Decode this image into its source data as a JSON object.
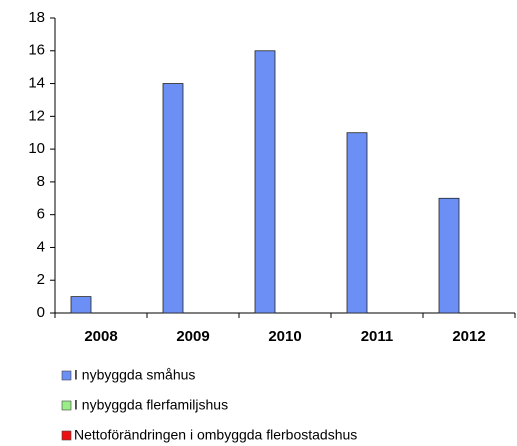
{
  "chart_data": {
    "type": "bar",
    "categories": [
      "2008",
      "2009",
      "2010",
      "2011",
      "2012"
    ],
    "series": [
      {
        "name": "I nybyggda småhus",
        "color": "#6b8ff5",
        "values": [
          1,
          14,
          16,
          11,
          7
        ]
      },
      {
        "name": "I nybyggda flerfamiljshus",
        "color": "#99ee88",
        "values": [
          0,
          0,
          0,
          0,
          0
        ]
      },
      {
        "name": "Nettoförändringen i ombyggda flerbostadshus",
        "color": "#ee1111",
        "values": [
          0,
          0,
          0,
          0,
          0
        ]
      }
    ],
    "ylim": [
      0,
      18
    ],
    "yticks": [
      0,
      2,
      4,
      6,
      8,
      10,
      12,
      14,
      16,
      18
    ],
    "grid": false,
    "legend": "bottom"
  }
}
